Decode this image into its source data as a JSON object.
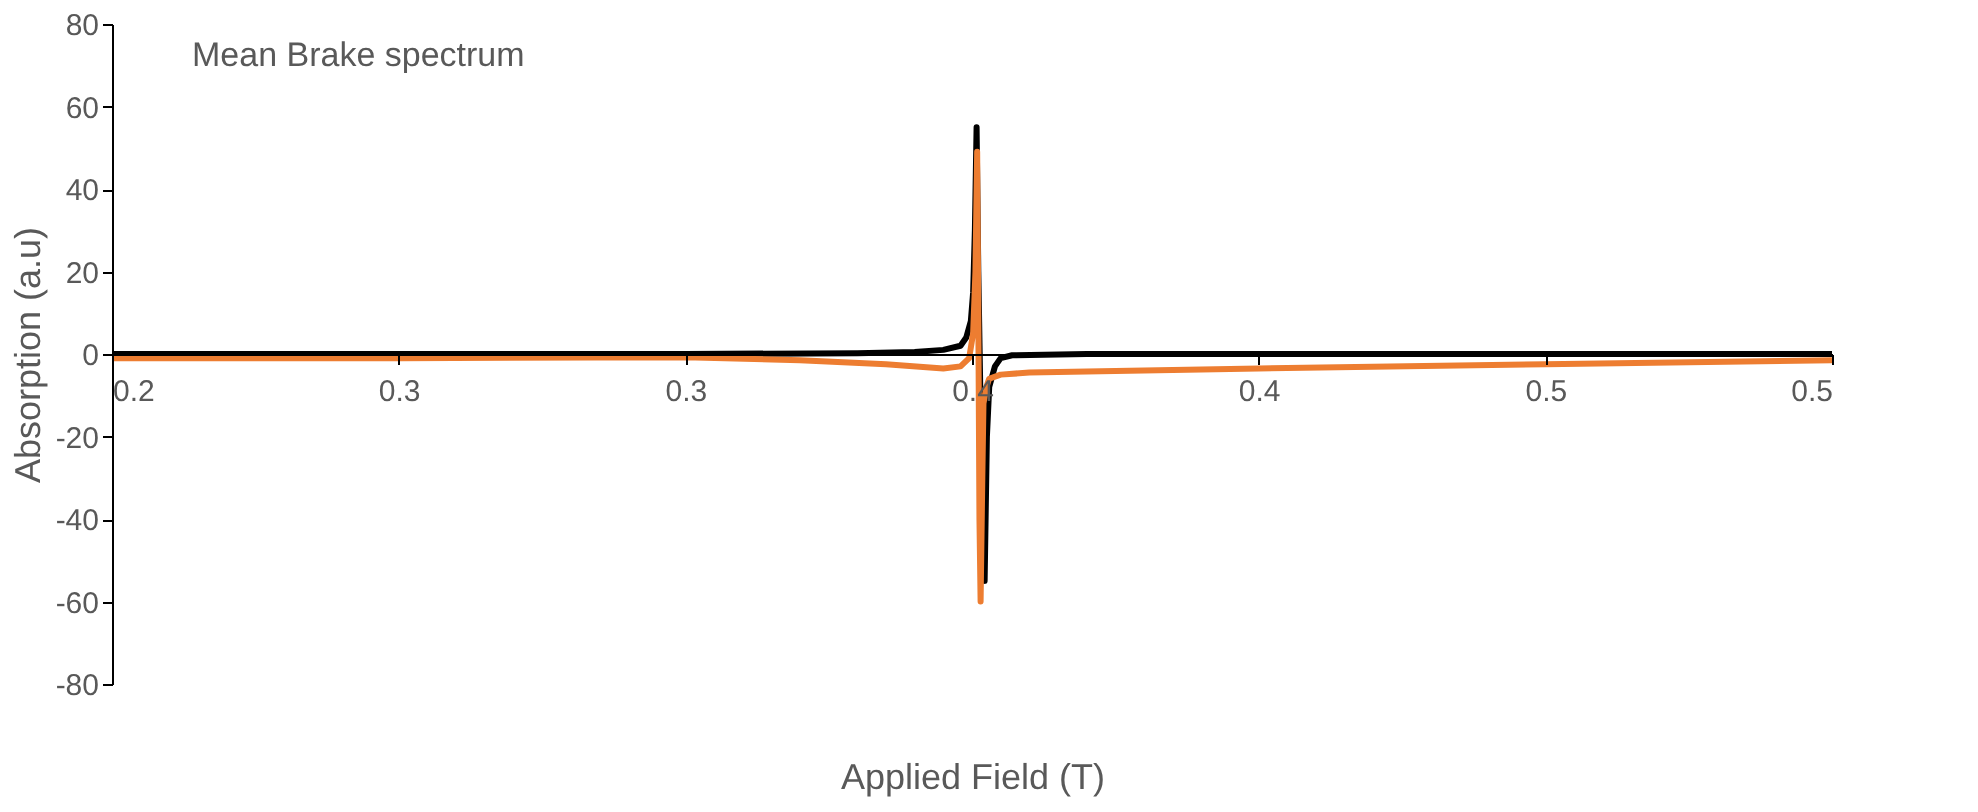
{
  "chart_data": {
    "type": "line",
    "xlabel": "Applied Field (T)",
    "ylabel": "Absorption (a.u)",
    "annotations": [
      "Mean Brake spectrum"
    ],
    "xlim": [
      0.2,
      0.5
    ],
    "ylim": [
      -80,
      80
    ],
    "xticks": [
      0.2,
      {
        "value": 0.25,
        "label": "0.3"
      },
      0.3,
      {
        "value": 0.35,
        "label": "0.4"
      },
      0.4,
      {
        "value": 0.45,
        "label": "0.5"
      },
      0.5
    ],
    "yticks": [
      -80,
      -60,
      -40,
      -20,
      0,
      20,
      40,
      60,
      80
    ],
    "grid": false,
    "legend": false,
    "marker": "none",
    "line_style": "solid",
    "series": [
      {
        "color": "#000000",
        "x": [
          0.2,
          0.3,
          0.33,
          0.34,
          0.345,
          0.348,
          0.349,
          0.3498,
          0.3502,
          0.3505,
          0.3508,
          0.3511,
          0.3514,
          0.3518,
          0.3522,
          0.3526,
          0.353,
          0.354,
          0.355,
          0.357,
          0.37,
          0.5
        ],
        "values": [
          0,
          0,
          0.2,
          0.5,
          1,
          2,
          4,
          8,
          15,
          30,
          55,
          20,
          -5,
          -40,
          -55,
          -20,
          -8,
          -3,
          -1,
          -0.3,
          0,
          0
        ]
      },
      {
        "color": "#ed7d31",
        "x": [
          0.2,
          0.25,
          0.3,
          0.32,
          0.335,
          0.345,
          0.348,
          0.3495,
          0.3502,
          0.3506,
          0.3509,
          0.3511,
          0.3513,
          0.3515,
          0.3518,
          0.352,
          0.3525,
          0.353,
          0.355,
          0.36,
          0.4,
          0.45,
          0.5
        ],
        "values": [
          -1,
          -1,
          -0.8,
          -1.5,
          -2.5,
          -3.5,
          -3,
          -1,
          5,
          20,
          49,
          10,
          -40,
          -60,
          -30,
          -12,
          -8,
          -6,
          -5,
          -4.5,
          -3.5,
          -2.5,
          -1.5
        ]
      }
    ]
  }
}
